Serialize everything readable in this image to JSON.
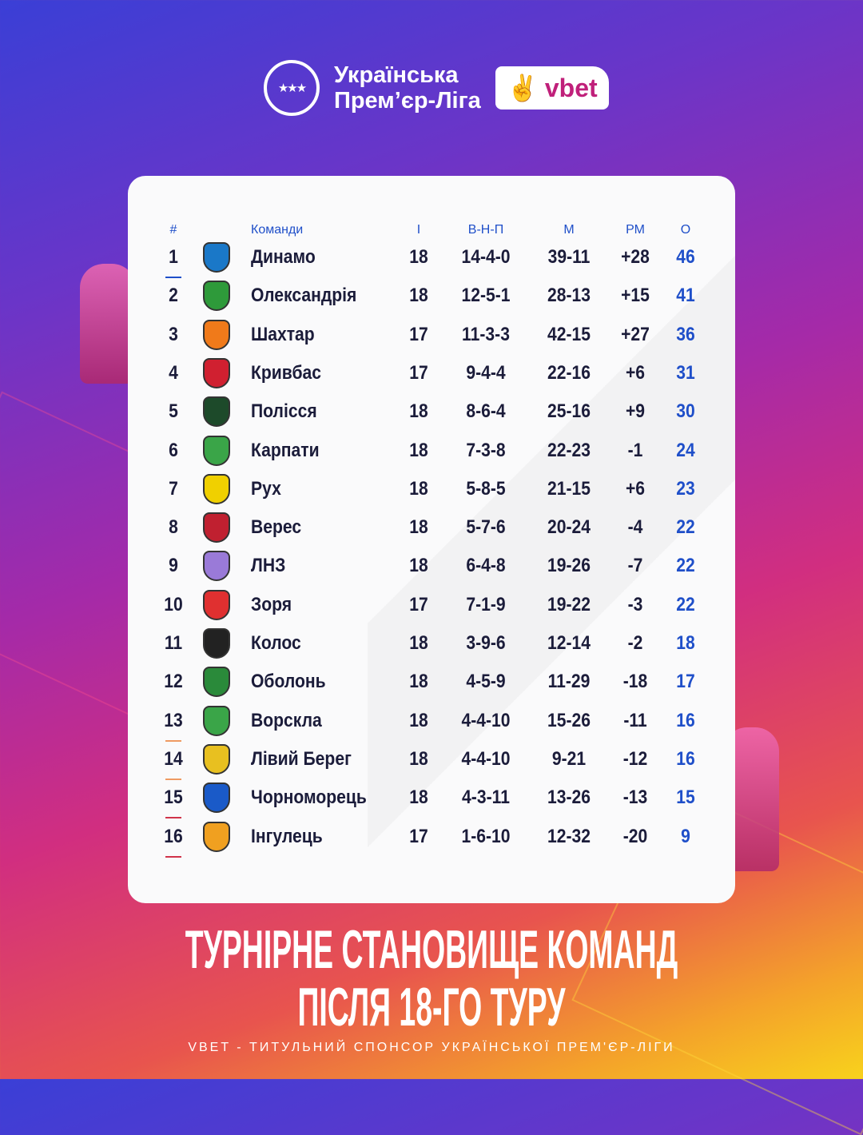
{
  "league": {
    "name_line1": "Українська",
    "name_line2": "Прем’єр-Ліга",
    "sponsor": "vbet"
  },
  "table": {
    "headers": {
      "rank": "#",
      "team": "Команди",
      "played": "І",
      "wdl": "В-Н-П",
      "goals": "М",
      "diff": "РМ",
      "points": "О"
    },
    "rows": [
      {
        "rank": "1",
        "team": "Динамо",
        "played": "18",
        "wdl": "14-4-0",
        "goals": "39-11",
        "diff": "+28",
        "points": "46",
        "zone": "#1f4fc9",
        "logo": "#1a78c8"
      },
      {
        "rank": "2",
        "team": "Олександрія",
        "played": "18",
        "wdl": "12-5-1",
        "goals": "28-13",
        "diff": "+15",
        "points": "41",
        "logo": "#2e9a3a"
      },
      {
        "rank": "3",
        "team": "Шахтар",
        "played": "17",
        "wdl": "11-3-3",
        "goals": "42-15",
        "diff": "+27",
        "points": "36",
        "logo": "#f07a1a"
      },
      {
        "rank": "4",
        "team": "Кривбас",
        "played": "17",
        "wdl": "9-4-4",
        "goals": "22-16",
        "diff": "+6",
        "points": "31",
        "logo": "#d02030"
      },
      {
        "rank": "5",
        "team": "Полісся",
        "played": "18",
        "wdl": "8-6-4",
        "goals": "25-16",
        "diff": "+9",
        "points": "30",
        "logo": "#1d4a2a"
      },
      {
        "rank": "6",
        "team": "Карпати",
        "played": "18",
        "wdl": "7-3-8",
        "goals": "22-23",
        "diff": "-1",
        "points": "24",
        "logo": "#3aa548"
      },
      {
        "rank": "7",
        "team": "Рух",
        "played": "18",
        "wdl": "5-8-5",
        "goals": "21-15",
        "diff": "+6",
        "points": "23",
        "logo": "#f0d000"
      },
      {
        "rank": "8",
        "team": "Верес",
        "played": "18",
        "wdl": "5-7-6",
        "goals": "20-24",
        "diff": "-4",
        "points": "22",
        "logo": "#c02030"
      },
      {
        "rank": "9",
        "team": "ЛНЗ",
        "played": "18",
        "wdl": "6-4-8",
        "goals": "19-26",
        "diff": "-7",
        "points": "22",
        "logo": "#9a7ad8"
      },
      {
        "rank": "10",
        "team": "Зоря",
        "played": "17",
        "wdl": "7-1-9",
        "goals": "19-22",
        "diff": "-3",
        "points": "22",
        "logo": "#e03030"
      },
      {
        "rank": "11",
        "team": "Колос",
        "played": "18",
        "wdl": "3-9-6",
        "goals": "12-14",
        "diff": "-2",
        "points": "18",
        "logo": "#222222"
      },
      {
        "rank": "12",
        "team": "Оболонь",
        "played": "18",
        "wdl": "4-5-9",
        "goals": "11-29",
        "diff": "-18",
        "points": "17",
        "logo": "#2a8a3a"
      },
      {
        "rank": "13",
        "team": "Ворскла",
        "played": "18",
        "wdl": "4-4-10",
        "goals": "15-26",
        "diff": "-11",
        "points": "16",
        "zone": "#ef9a62",
        "logo": "#3aa548"
      },
      {
        "rank": "14",
        "team": "Лівий Берег",
        "played": "18",
        "wdl": "4-4-10",
        "goals": "9-21",
        "diff": "-12",
        "points": "16",
        "zone": "#ef9a62",
        "logo": "#e8c020"
      },
      {
        "rank": "15",
        "team": "Чорноморець",
        "played": "18",
        "wdl": "4-3-11",
        "goals": "13-26",
        "diff": "-13",
        "points": "15",
        "zone": "#d0334a",
        "logo": "#1a5ac8"
      },
      {
        "rank": "16",
        "team": "Інгулець",
        "played": "17",
        "wdl": "1-6-10",
        "goals": "12-32",
        "diff": "-20",
        "points": "9",
        "zone": "#d0334a",
        "logo": "#f0a020"
      }
    ]
  },
  "title": {
    "line1": "ТУРНІРНЕ СТАНОВИЩЕ КОМАНД",
    "line2": "ПІСЛЯ 18-ГО ТУРУ"
  },
  "footer": "VBET - ТИТУЛЬНИЙ СПОНСОР УКРАЇНСЬКОЇ ПРЕМ'ЄР-ЛІГИ"
}
